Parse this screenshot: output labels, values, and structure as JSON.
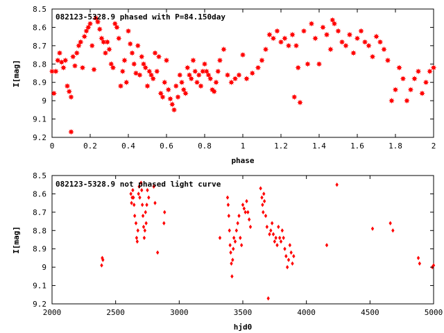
{
  "chart_data": [
    {
      "type": "scatter",
      "title": "082123-5328.9 phased with P=84.150day",
      "xlabel": "phase",
      "ylabel": "I[mag]",
      "xlim": [
        0,
        2
      ],
      "ylim": [
        9.2,
        8.5
      ],
      "y_inverted": true,
      "x_ticks": [
        "0",
        "0.2",
        "0.4",
        "0.6",
        "0.8",
        "1",
        "1.2",
        "1.4",
        "1.6",
        "1.8",
        "2"
      ],
      "y_ticks": [
        "8.5",
        "8.6",
        "8.7",
        "8.8",
        "8.9",
        "9",
        "9.1",
        "9.2"
      ],
      "grid": false,
      "marker_color": "#ff0000",
      "marker": "star",
      "series": [
        {
          "x": [
            0.0,
            0.01,
            0.02,
            0.03,
            0.04,
            0.05,
            0.06,
            0.07,
            0.08,
            0.09,
            0.1,
            0.1,
            0.11,
            0.12,
            0.13,
            0.14,
            0.15,
            0.16,
            0.17,
            0.18,
            0.19,
            0.2,
            0.21,
            0.22,
            0.23,
            0.24,
            0.25,
            0.26,
            0.27,
            0.28,
            0.29,
            0.3,
            0.31,
            0.32,
            0.33,
            0.34,
            0.35,
            0.36,
            0.37,
            0.38,
            0.39,
            0.4,
            0.41,
            0.42,
            0.43,
            0.44,
            0.45,
            0.46,
            0.47,
            0.48,
            0.49,
            0.5,
            0.51,
            0.52,
            0.53,
            0.54,
            0.55,
            0.56,
            0.57,
            0.58,
            0.59,
            0.6,
            0.61,
            0.62,
            0.63,
            0.64,
            0.65,
            0.66,
            0.67,
            0.68,
            0.69,
            0.7,
            0.71,
            0.72,
            0.73,
            0.74,
            0.75,
            0.76,
            0.77,
            0.78,
            0.79,
            0.8,
            0.81,
            0.82,
            0.83,
            0.84,
            0.85,
            0.86,
            0.87,
            0.88,
            0.9,
            0.92,
            0.94,
            0.96,
            0.98,
            1.0,
            1.02,
            1.05,
            1.08,
            1.1,
            1.12,
            1.14,
            1.16,
            1.18,
            1.2,
            1.22,
            1.24,
            1.26,
            1.27,
            1.28,
            1.29,
            1.3,
            1.32,
            1.34,
            1.36,
            1.38,
            1.4,
            1.42,
            1.44,
            1.46,
            1.47,
            1.48,
            1.5,
            1.52,
            1.54,
            1.56,
            1.58,
            1.6,
            1.62,
            1.64,
            1.66,
            1.68,
            1.7,
            1.72,
            1.74,
            1.76,
            1.78,
            1.8,
            1.82,
            1.84,
            1.86,
            1.88,
            1.9,
            1.92,
            1.94,
            1.96,
            1.98,
            2.0
          ],
          "y": [
            8.84,
            8.96,
            8.84,
            8.78,
            8.74,
            8.79,
            8.82,
            8.78,
            8.92,
            8.95,
            8.98,
            9.17,
            8.76,
            8.81,
            8.74,
            8.7,
            8.68,
            8.82,
            8.65,
            8.62,
            8.6,
            8.58,
            8.7,
            8.83,
            8.55,
            8.57,
            8.61,
            8.66,
            8.68,
            8.74,
            8.68,
            8.72,
            8.8,
            8.82,
            8.58,
            8.6,
            8.66,
            8.92,
            8.84,
            8.78,
            8.9,
            8.62,
            8.69,
            8.74,
            8.8,
            8.85,
            8.7,
            8.86,
            8.76,
            8.8,
            8.82,
            8.92,
            8.84,
            8.86,
            8.88,
            8.74,
            8.84,
            8.76,
            8.96,
            8.98,
            8.9,
            8.78,
            8.94,
            8.99,
            9.02,
            9.05,
            8.92,
            8.98,
            8.86,
            8.9,
            8.94,
            8.96,
            8.82,
            8.86,
            8.88,
            8.78,
            8.84,
            8.9,
            8.86,
            8.92,
            8.84,
            8.8,
            8.84,
            8.86,
            8.88,
            8.94,
            8.95,
            8.9,
            8.84,
            8.78,
            8.72,
            8.86,
            8.9,
            8.88,
            8.86,
            8.75,
            8.88,
            8.85,
            8.82,
            8.78,
            8.72,
            8.64,
            8.66,
            8.62,
            8.68,
            8.66,
            8.7,
            8.64,
            8.98,
            8.7,
            8.82,
            9.01,
            8.62,
            8.8,
            8.58,
            8.66,
            8.8,
            8.6,
            8.64,
            8.72,
            8.56,
            8.58,
            8.62,
            8.68,
            8.7,
            8.64,
            8.74,
            8.66,
            8.62,
            8.68,
            8.7,
            8.76,
            8.65,
            8.68,
            8.72,
            8.78,
            9.0,
            8.94,
            8.82,
            8.88,
            9.0,
            8.94,
            8.88,
            8.84,
            8.96,
            8.9,
            8.84,
            8.82
          ],
          "_scatter_note": "values approximated from plot"
        }
      ]
    },
    {
      "type": "scatter",
      "title": "082123-5328.9 not phased light curve",
      "xlabel": "hjd0",
      "ylabel": "I[mag]",
      "xlim": [
        2000,
        5000
      ],
      "ylim": [
        9.2,
        8.5
      ],
      "y_inverted": true,
      "x_ticks": [
        "2000",
        "2500",
        "3000",
        "3500",
        "4000",
        "4500",
        "5000"
      ],
      "y_ticks": [
        "8.5",
        "8.6",
        "8.7",
        "8.8",
        "8.9",
        "9",
        "9.1",
        "9.2"
      ],
      "grid": false,
      "marker_color": "#ff0000",
      "marker": "diamond",
      "series": [
        {
          "x": [
            2390,
            2395,
            2400,
            2620,
            2625,
            2630,
            2635,
            2640,
            2645,
            2650,
            2660,
            2665,
            2670,
            2675,
            2680,
            2685,
            2690,
            2700,
            2705,
            2710,
            2715,
            2720,
            2725,
            2730,
            2735,
            2740,
            2745,
            2750,
            2760,
            2800,
            2810,
            2830,
            2880,
            2885,
            3320,
            3380,
            3385,
            3390,
            3395,
            3400,
            3405,
            3410,
            3415,
            3420,
            3425,
            3430,
            3440,
            3450,
            3460,
            3470,
            3480,
            3490,
            3500,
            3510,
            3520,
            3530,
            3540,
            3550,
            3560,
            3640,
            3650,
            3655,
            3660,
            3665,
            3670,
            3680,
            3690,
            3700,
            3710,
            3720,
            3730,
            3740,
            3750,
            3760,
            3770,
            3780,
            3790,
            3800,
            3810,
            3820,
            3830,
            3840,
            3850,
            3860,
            3870,
            3880,
            3890,
            3900,
            4160,
            4240,
            4520,
            4660,
            4680,
            4880,
            4890,
            4990,
            5000
          ],
          "y": [
            8.99,
            8.95,
            8.96,
            8.6,
            8.65,
            8.62,
            8.58,
            8.62,
            8.66,
            8.72,
            8.76,
            8.84,
            8.86,
            8.8,
            8.6,
            8.56,
            8.62,
            8.54,
            8.58,
            8.66,
            8.72,
            8.78,
            8.84,
            8.8,
            8.7,
            8.76,
            8.66,
            8.58,
            8.62,
            8.56,
            8.65,
            8.92,
            8.76,
            8.7,
            8.84,
            8.62,
            8.66,
            8.72,
            8.8,
            8.88,
            8.92,
            8.98,
            9.05,
            8.96,
            8.9,
            8.84,
            8.86,
            8.8,
            8.76,
            8.72,
            8.84,
            8.88,
            8.66,
            8.68,
            8.7,
            8.64,
            8.7,
            8.74,
            8.78,
            8.57,
            8.62,
            8.66,
            8.7,
            8.6,
            8.64,
            8.72,
            8.78,
            9.17,
            8.82,
            8.8,
            8.76,
            8.82,
            8.86,
            8.84,
            8.88,
            8.78,
            8.84,
            8.86,
            8.8,
            8.84,
            8.9,
            8.94,
            9.0,
            8.96,
            8.88,
            8.92,
            8.98,
            8.94,
            8.88,
            8.55,
            8.79,
            8.76,
            8.8,
            8.95,
            8.98,
            9.0,
            8.99
          ],
          "_scatter_note": "values approximated from plot"
        }
      ]
    }
  ]
}
